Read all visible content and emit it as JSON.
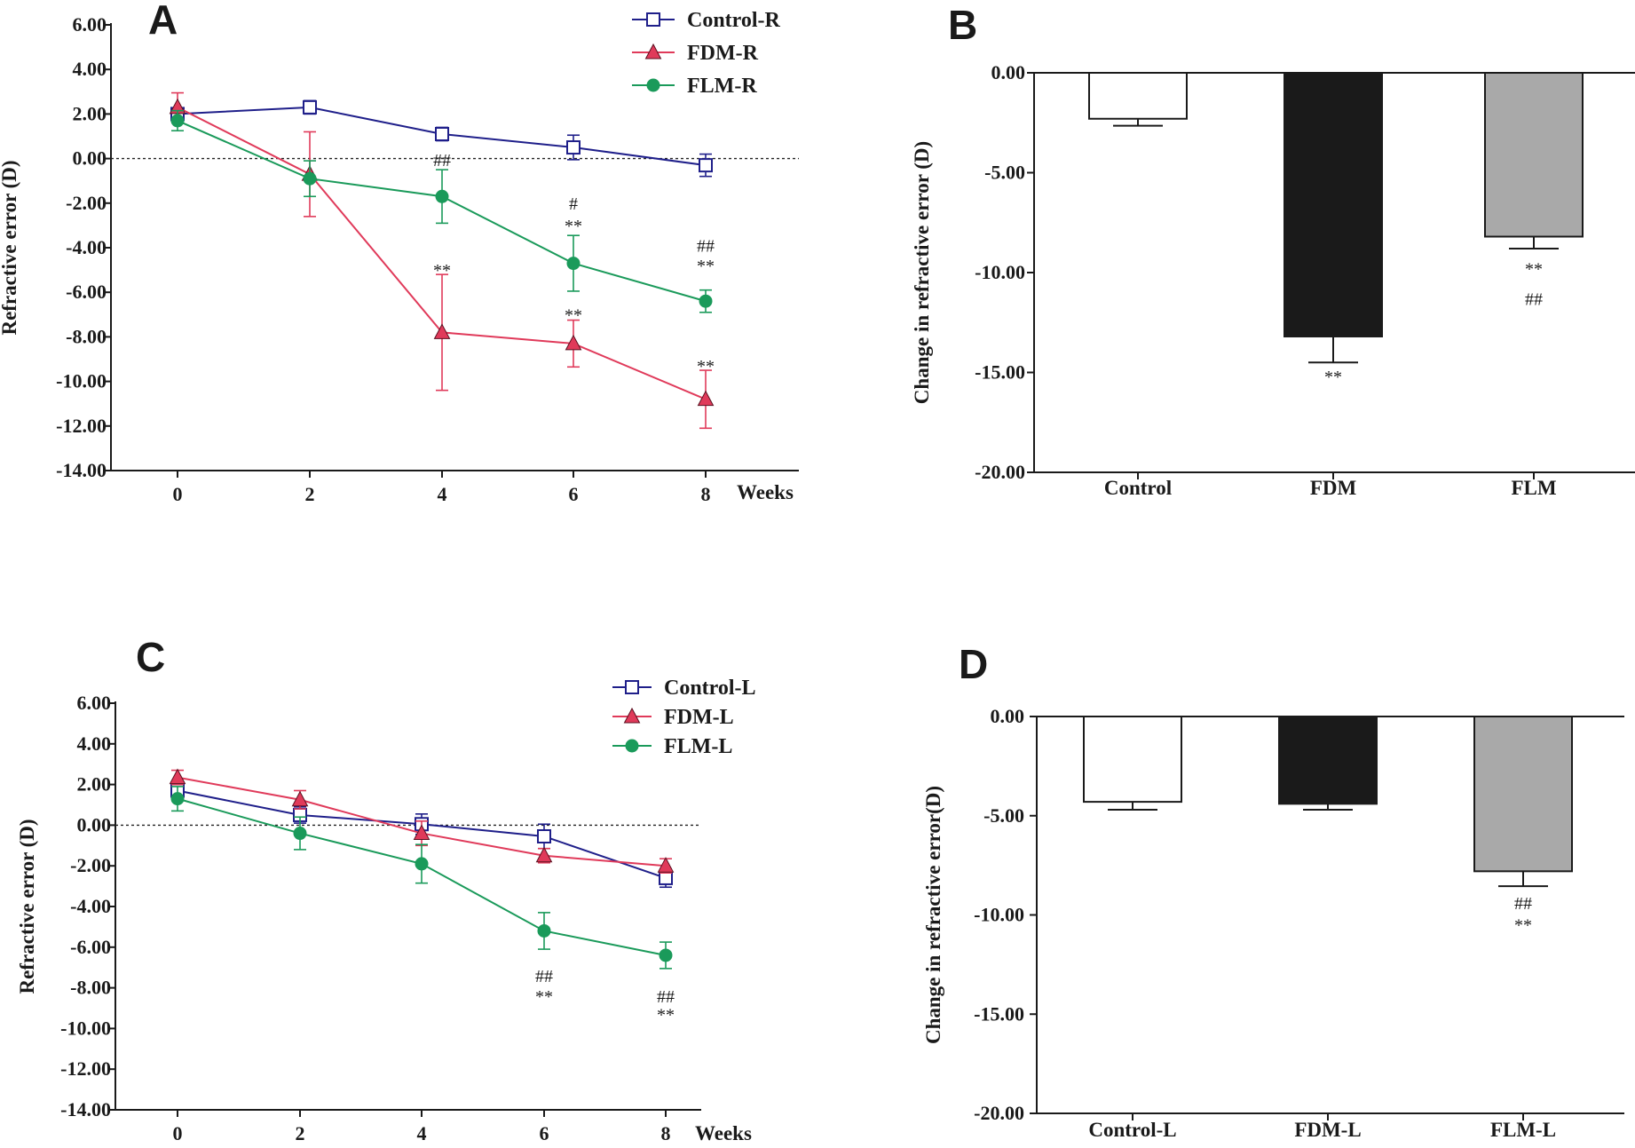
{
  "colors": {
    "control": "#1f1f8a",
    "fdm": "#e03a5a",
    "flm": "#1a9a5a",
    "bar_control": "#ffffff",
    "bar_fdm": "#1a1a1a",
    "bar_flm": "#a9a9a9",
    "axis": "#1a1a1a"
  },
  "chart_data": [
    {
      "panel": "A",
      "type": "line",
      "xlabel": "Weeks",
      "ylabel": "Refractive error (D)",
      "x": [
        0,
        2,
        4,
        6,
        8
      ],
      "ylim": [
        -14,
        6
      ],
      "yticks": [
        "6.00",
        "4.00",
        "2.00",
        "0.00",
        "-2.00",
        "-4.00",
        "-6.00",
        "-8.00",
        "-10.00",
        "-12.00",
        "-14.00"
      ],
      "reference_line": 0,
      "legend_position": "top-center",
      "series": [
        {
          "name": "Control-R",
          "marker": "open-square",
          "values": [
            2.0,
            2.3,
            1.1,
            0.5,
            -0.3
          ],
          "errors": [
            0.2,
            0.3,
            0.3,
            0.55,
            0.5
          ]
        },
        {
          "name": "FDM-R",
          "marker": "triangle",
          "values": [
            2.3,
            -0.7,
            -7.8,
            -8.3,
            -10.8
          ],
          "errors": [
            0.65,
            1.9,
            2.6,
            1.05,
            1.3
          ]
        },
        {
          "name": "FLM-R",
          "marker": "circle",
          "values": [
            1.7,
            -0.9,
            -1.7,
            -4.7,
            -6.4
          ],
          "errors": [
            0.45,
            0.8,
            1.2,
            1.25,
            0.5
          ]
        }
      ],
      "annotations": [
        {
          "x": 4,
          "y": -0.05,
          "text": "##",
          "series": "FLM-R"
        },
        {
          "x": 4,
          "y": -5.0,
          "text": "**",
          "series": "FDM-R"
        },
        {
          "x": 6,
          "y": -2.0,
          "text": "#",
          "series": "FLM-R"
        },
        {
          "x": 6,
          "y": -3.0,
          "text": "**",
          "series": "FLM-R"
        },
        {
          "x": 6,
          "y": -7.0,
          "text": "**",
          "series": "FDM-R"
        },
        {
          "x": 8,
          "y": -3.9,
          "text": "##",
          "series": "FLM-R"
        },
        {
          "x": 8,
          "y": -4.8,
          "text": "**",
          "series": "FLM-R"
        },
        {
          "x": 8,
          "y": -9.3,
          "text": "**",
          "series": "FDM-R"
        }
      ]
    },
    {
      "panel": "B",
      "type": "bar",
      "ylabel": "Change in refractive error (D)",
      "categories": [
        "Control",
        "FDM",
        "FLM"
      ],
      "values": [
        -2.3,
        -13.2,
        -8.2
      ],
      "errors": [
        0.35,
        1.3,
        0.6
      ],
      "ylim": [
        -20,
        0
      ],
      "yticks": [
        "0.00",
        "-5.00",
        "-10.00",
        "-15.00",
        "-20.00"
      ],
      "annotations": [
        {
          "category": "FDM",
          "y": -15.2,
          "text": "**"
        },
        {
          "category": "FLM",
          "y": -9.8,
          "text": "**"
        },
        {
          "category": "FLM",
          "y": -11.3,
          "text": "##"
        }
      ]
    },
    {
      "panel": "C",
      "type": "line",
      "xlabel": "Weeks",
      "ylabel": "Refractive error (D)",
      "x": [
        0,
        2,
        4,
        6,
        8
      ],
      "ylim": [
        -14,
        6
      ],
      "yticks": [
        "6.00",
        "4.00",
        "2.00",
        "0.00",
        "-2.00",
        "-4.00",
        "-6.00",
        "-8.00",
        "-10.00",
        "-12.00",
        "-14.00"
      ],
      "reference_line": 0,
      "legend_position": "top-right",
      "series": [
        {
          "name": "Control-L",
          "marker": "open-square",
          "values": [
            1.7,
            0.5,
            0.05,
            -0.55,
            -2.6
          ],
          "errors": [
            0.3,
            0.4,
            0.5,
            0.6,
            0.45
          ]
        },
        {
          "name": "FDM-L",
          "marker": "triangle",
          "values": [
            2.35,
            1.25,
            -0.4,
            -1.5,
            -2.0
          ],
          "errors": [
            0.35,
            0.45,
            0.6,
            0.35,
            0.35
          ]
        },
        {
          "name": "FLM-L",
          "marker": "circle",
          "values": [
            1.3,
            -0.4,
            -1.9,
            -5.2,
            -6.4
          ],
          "errors": [
            0.6,
            0.8,
            0.95,
            0.9,
            0.65
          ]
        }
      ],
      "annotations": [
        {
          "x": 6,
          "y": -7.4,
          "text": "##",
          "series": "FLM-L"
        },
        {
          "x": 6,
          "y": -8.4,
          "text": "**",
          "series": "FLM-L"
        },
        {
          "x": 8,
          "y": -8.4,
          "text": "##",
          "series": "FLM-L"
        },
        {
          "x": 8,
          "y": -9.3,
          "text": "**",
          "series": "FLM-L"
        }
      ]
    },
    {
      "panel": "D",
      "type": "bar",
      "ylabel": "Change in refractive error(D)",
      "categories": [
        "Control-L",
        "FDM-L",
        "FLM-L"
      ],
      "values": [
        -4.3,
        -4.4,
        -7.8
      ],
      "errors": [
        0.4,
        0.3,
        0.75
      ],
      "ylim": [
        -20,
        0
      ],
      "yticks": [
        "0.00",
        "-5.00",
        "-10.00",
        "-15.00",
        "-20.00"
      ],
      "annotations": [
        {
          "category": "FLM-L",
          "y": -9.4,
          "text": "##"
        },
        {
          "category": "FLM-L",
          "y": -10.5,
          "text": "**"
        }
      ]
    }
  ]
}
